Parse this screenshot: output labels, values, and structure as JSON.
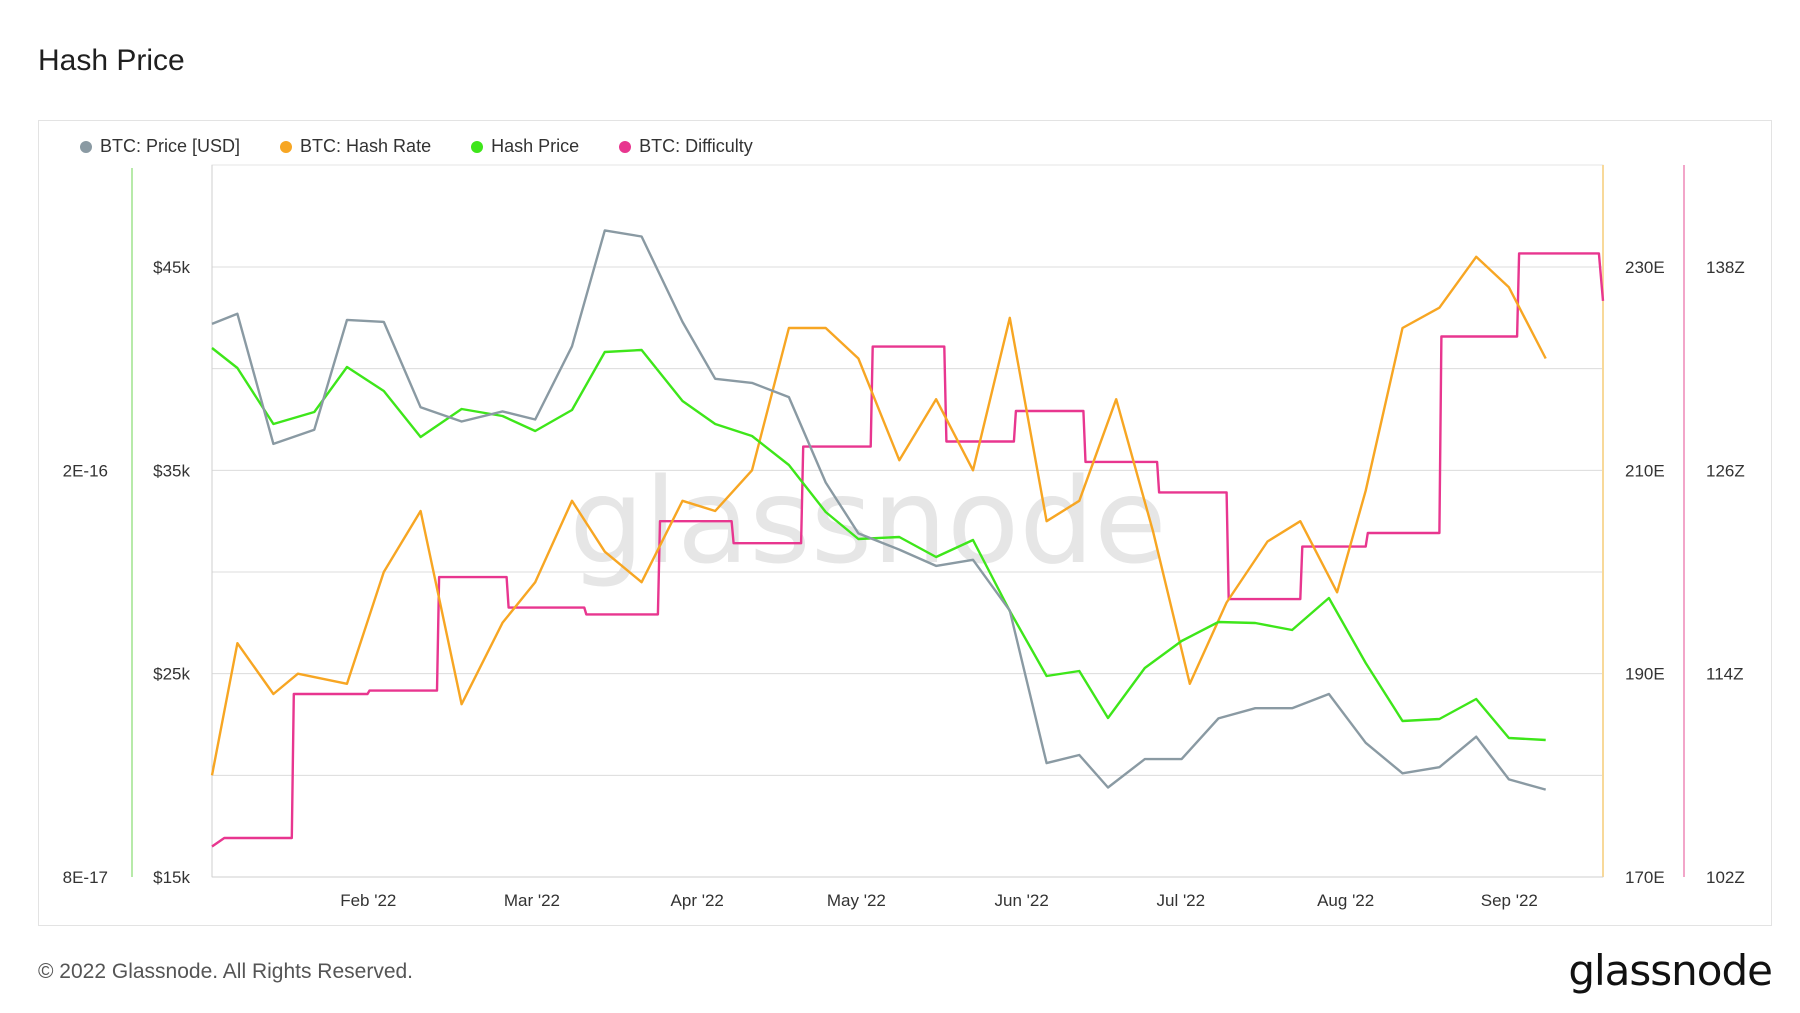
{
  "title": "Hash Price",
  "footer": {
    "copyright": "© 2022 Glassnode. All Rights Reserved.",
    "logo": "glassnode"
  },
  "watermark": "glassnode",
  "chart_data": {
    "type": "line",
    "title": "Hash Price",
    "x_ticks": [
      "Feb '22",
      "Mar '22",
      "Apr '22",
      "May '22",
      "Jun '22",
      "Jul '22",
      "Aug '22",
      "Sep '22"
    ],
    "x_tick_index": [
      3.82,
      7.82,
      11.86,
      15.75,
      19.79,
      23.68,
      27.71,
      31.71
    ],
    "axes": {
      "price_usd": {
        "ticks": [
          "$15k",
          "$25k",
          "$35k",
          "$45k"
        ],
        "range": [
          15000,
          50000
        ]
      },
      "hash_price": {
        "ticks": [
          "8E-17",
          "2E-16"
        ]
      },
      "hash_rate": {
        "ticks": [
          "170E",
          "190E",
          "210E",
          "230E"
        ],
        "range": [
          170,
          240
        ]
      },
      "difficulty": {
        "ticks": [
          "102Z",
          "114Z",
          "126Z",
          "138Z"
        ],
        "range": [
          102,
          144
        ]
      }
    },
    "series": [
      {
        "name": "BTC: Price [USD]",
        "color": "#8a9aa3",
        "axis": "price_usd",
        "x": [
          0,
          0.62,
          1.5,
          2.5,
          3.3,
          4.2,
          5.1,
          6.1,
          7.1,
          7.9,
          8.8,
          9.6,
          10.5,
          11.5,
          12.3,
          13.2,
          14.1,
          15.0,
          15.8,
          16.8,
          17.7,
          18.6,
          19.5,
          20.4,
          21.2,
          21.9,
          22.8,
          23.7,
          24.6,
          25.5,
          26.4,
          27.3,
          28.2,
          29.1,
          30.0,
          30.9,
          31.7,
          32.6,
          33.4
        ],
        "values": [
          42200,
          42700,
          36300,
          37000,
          42400,
          42300,
          38100,
          37400,
          37900,
          37500,
          41100,
          46800,
          46500,
          42300,
          39500,
          39300,
          38600,
          34400,
          31900,
          31100,
          30300,
          30600,
          28100,
          20600,
          21000,
          19400,
          20800,
          20800,
          22800,
          23300,
          23300,
          24000,
          21600,
          20100,
          20400,
          21900,
          19800,
          19300,
          0
        ],
        "last_valid": 37
      },
      {
        "name": "BTC: Hash Rate",
        "color": "#f7a623",
        "axis": "hash_rate",
        "x": [
          0,
          0.62,
          1.5,
          2.1,
          3.3,
          4.2,
          5.1,
          6.1,
          7.1,
          7.9,
          8.8,
          9.6,
          10.5,
          11.5,
          12.3,
          13.2,
          14.1,
          15.0,
          15.8,
          16.8,
          17.7,
          18.6,
          19.5,
          20.4,
          21.2,
          22.1,
          23.0,
          23.9,
          24.8,
          25.8,
          26.6,
          27.5,
          28.2,
          29.1,
          30.0,
          30.9,
          31.7,
          32.6,
          33.4
        ],
        "values": [
          180,
          193,
          188,
          190,
          189,
          200,
          206,
          187,
          195,
          199,
          207,
          202,
          199,
          207,
          206,
          210,
          224,
          224,
          221,
          211,
          217,
          210,
          225,
          205,
          207,
          217,
          204,
          189,
          197,
          203,
          205,
          198,
          208,
          224,
          226,
          231,
          228,
          221,
          221
        ],
        "last_valid": 37
      },
      {
        "name": "Hash Price",
        "color": "#3ee61a",
        "axis": "hash_price_px",
        "x": [
          0,
          0.62,
          1.5,
          2.5,
          3.3,
          4.2,
          5.1,
          6.1,
          7.1,
          7.9,
          8.8,
          9.6,
          10.5,
          11.5,
          12.3,
          13.2,
          14.1,
          15.0,
          15.8,
          16.8,
          17.7,
          18.6,
          19.5,
          20.4,
          21.2,
          21.9,
          22.8,
          23.7,
          24.6,
          25.5,
          26.4,
          27.3,
          28.2,
          29.1,
          30.0,
          30.9,
          31.7,
          32.6,
          33.4
        ],
        "values": [
          348,
          368,
          424,
          412,
          367,
          391,
          437,
          409,
          416,
          431,
          410,
          352,
          350,
          401,
          424,
          436,
          465,
          512,
          539,
          537,
          557,
          540,
          611,
          676,
          671,
          718,
          668,
          641,
          622,
          623,
          630,
          598,
          663,
          721,
          719,
          699,
          738,
          740,
          740
        ],
        "last_valid": 37
      },
      {
        "name": "BTC: Difficulty",
        "color": "#e8368f",
        "axis": "difficulty",
        "steps": [
          [
            0,
            103.8
          ],
          [
            0.3,
            104.3
          ],
          [
            1.95,
            104.3
          ],
          [
            2.0,
            112.8
          ],
          [
            3.8,
            112.8
          ],
          [
            3.85,
            113.0
          ],
          [
            5.5,
            113.0
          ],
          [
            5.55,
            119.7
          ],
          [
            7.2,
            119.7
          ],
          [
            7.25,
            117.9
          ],
          [
            9.1,
            117.9
          ],
          [
            9.15,
            117.5
          ],
          [
            10.9,
            117.5
          ],
          [
            10.95,
            123.0
          ],
          [
            12.7,
            123.0
          ],
          [
            12.75,
            121.7
          ],
          [
            14.4,
            121.7
          ],
          [
            14.45,
            127.4
          ],
          [
            16.1,
            127.4
          ],
          [
            16.15,
            133.3
          ],
          [
            17.9,
            133.3
          ],
          [
            17.95,
            127.7
          ],
          [
            19.6,
            127.7
          ],
          [
            19.65,
            129.5
          ],
          [
            21.3,
            129.5
          ],
          [
            21.35,
            126.5
          ],
          [
            23.1,
            126.5
          ],
          [
            23.15,
            124.7
          ],
          [
            24.8,
            124.7
          ],
          [
            24.85,
            118.4
          ],
          [
            26.6,
            118.4
          ],
          [
            26.65,
            121.5
          ],
          [
            28.2,
            121.5
          ],
          [
            28.25,
            122.3
          ],
          [
            30.0,
            122.3
          ],
          [
            30.05,
            133.9
          ],
          [
            31.9,
            133.9
          ],
          [
            31.95,
            138.8
          ],
          [
            33.9,
            138.8
          ],
          [
            34.0,
            136.0
          ]
        ]
      }
    ],
    "legend_position": "top-left",
    "grid": true
  }
}
